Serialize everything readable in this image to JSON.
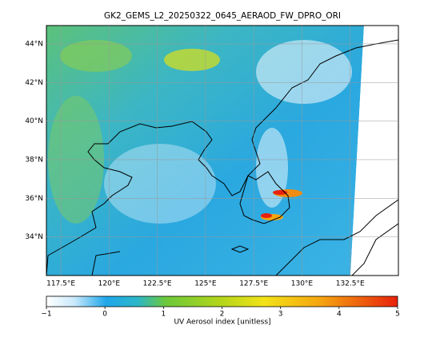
{
  "map": {
    "title": "GK2_GEMS_L2_20250322_0645_AERAOD_FW_DPRO_ORI",
    "lon_range": [
      116.75,
      135
    ],
    "lat_range": [
      32,
      44.95
    ],
    "lat_ticks": [
      {
        "value": 44,
        "label": "44°N"
      },
      {
        "value": 42,
        "label": "42°N"
      },
      {
        "value": 40,
        "label": "40°N"
      },
      {
        "value": 38,
        "label": "38°N"
      },
      {
        "value": 36,
        "label": "36°N"
      },
      {
        "value": 34,
        "label": "34°N"
      }
    ],
    "lon_ticks": [
      {
        "value": 117.5,
        "label": "117.5°E"
      },
      {
        "value": 120,
        "label": "120°E"
      },
      {
        "value": 122.5,
        "label": "122.5°E"
      },
      {
        "value": 125,
        "label": "125°E"
      },
      {
        "value": 127.5,
        "label": "127.5°E"
      },
      {
        "value": 130,
        "label": "130°E"
      },
      {
        "value": 132.5,
        "label": "132.5°E"
      }
    ],
    "colorbar": {
      "label": "UV Aerosol index [unitless]",
      "range": [
        -1,
        5
      ],
      "ticks": [
        {
          "value": -1,
          "label": "−1"
        },
        0,
        1,
        2,
        3,
        4,
        5
      ]
    }
  }
}
